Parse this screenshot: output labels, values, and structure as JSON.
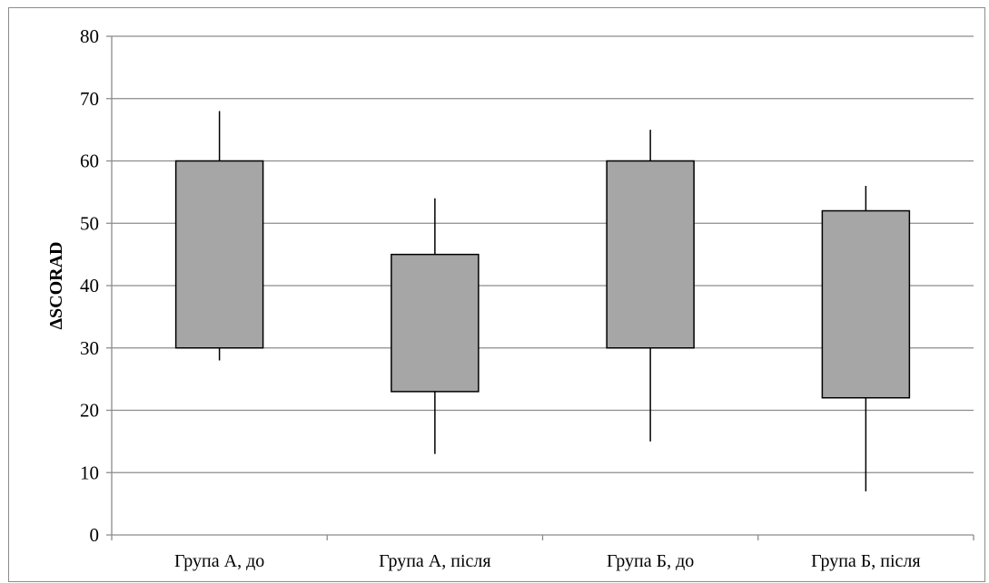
{
  "chart_data": {
    "type": "box",
    "title": "",
    "xlabel": "",
    "ylabel": "ΔSCORAD",
    "ylim": [
      0,
      80
    ],
    "yticks": [
      0,
      10,
      20,
      30,
      40,
      50,
      60,
      70,
      80
    ],
    "grid": true,
    "categories": [
      "Група А, до",
      "Група А, після",
      "Група Б, до",
      "Група Б, після"
    ],
    "boxes": [
      {
        "min": 28,
        "q1": 30,
        "q3": 60,
        "max": 68
      },
      {
        "min": 13,
        "q1": 23,
        "q3": 45,
        "max": 54
      },
      {
        "min": 15,
        "q1": 30,
        "q3": 60,
        "max": 65
      },
      {
        "min": 7,
        "q1": 22,
        "q3": 52,
        "max": 56
      }
    ],
    "colors": {
      "box_fill": "#a6a6a6",
      "box_stroke": "#000000",
      "grid": "#8c8c8c",
      "whisker": "#000000"
    }
  }
}
